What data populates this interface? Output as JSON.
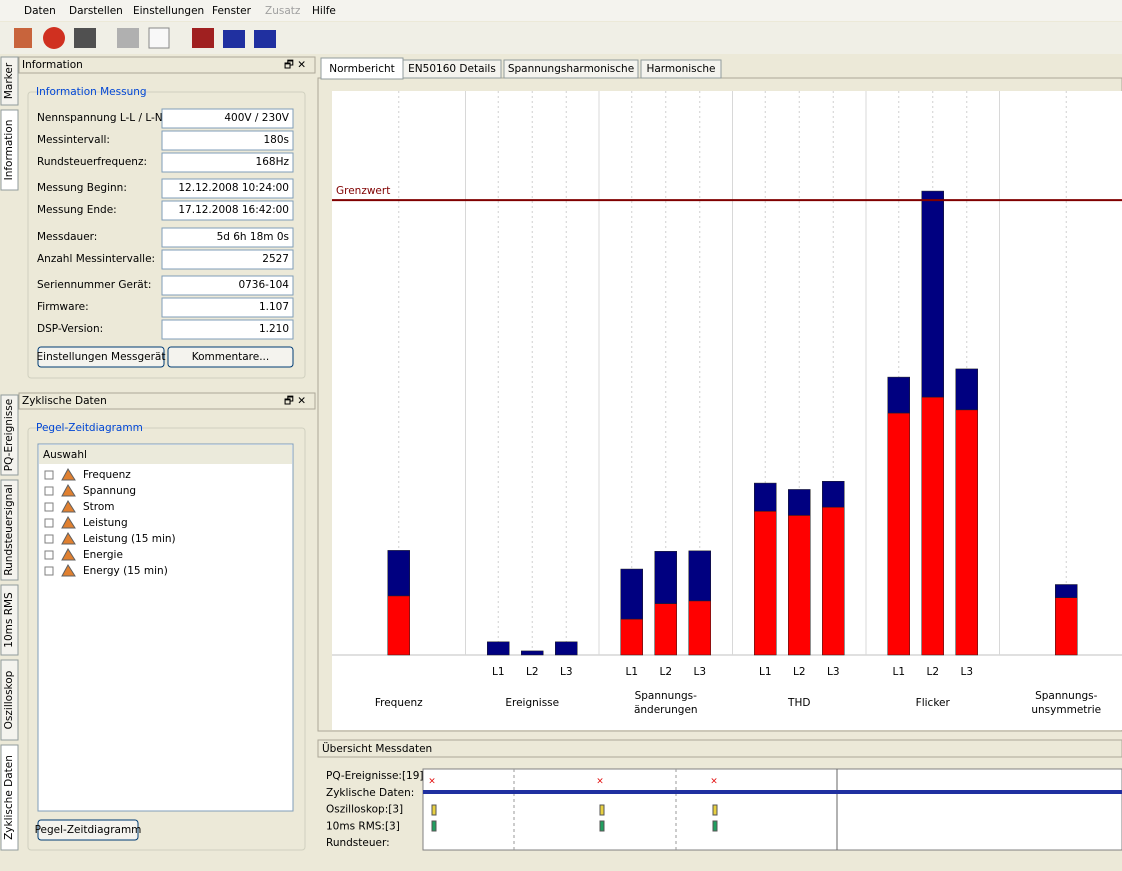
{
  "menu": [
    "Daten",
    "Darstellen",
    "Einstellungen",
    "Fenster",
    "Zusatz",
    "Hilfe"
  ],
  "side_tabs_top": [
    "Marker",
    "Information"
  ],
  "side_tabs_bottom": [
    "PQ-Ereignisse",
    "Rundsteuersignal",
    "10ms RMS",
    "Oszilloskop",
    "Zyklische Daten"
  ],
  "info_panel": {
    "title": "Information",
    "group": "Information Messung",
    "fields": [
      {
        "label": "Nennspannung L-L / L-N:",
        "value": "400V / 230V"
      },
      {
        "label": "Messintervall:",
        "value": "180s"
      },
      {
        "label": "Rundsteuerfrequenz:",
        "value": "168Hz"
      },
      {
        "label": "Messung Beginn:",
        "value": "12.12.2008 10:24:00"
      },
      {
        "label": "Messung Ende:",
        "value": "17.12.2008 16:42:00"
      },
      {
        "label": "Messdauer:",
        "value": "5d 6h 18m 0s"
      },
      {
        "label": "Anzahl Messintervalle:",
        "value": "2527"
      },
      {
        "label": "Seriennummer Gerät:",
        "value": "0736-104"
      },
      {
        "label": "Firmware:",
        "value": "1.107"
      },
      {
        "label": "DSP-Version:",
        "value": "1.210"
      }
    ],
    "buttons": [
      "Einstellungen Messgerät",
      "Kommentare..."
    ]
  },
  "cyclic_panel": {
    "title": "Zyklische Daten",
    "group": "Pegel-Zeitdiagramm",
    "list_header": "Auswahl",
    "items": [
      "Frequenz",
      "Spannung",
      "Strom",
      "Leistung",
      "Leistung (15 min)",
      "Energie",
      "Energy (15 min)"
    ],
    "button": "Pegel-Zeitdiagramm"
  },
  "tabs": [
    "Normbericht",
    "EN50160 Details",
    "Spannungsharmonische",
    "Harmonische"
  ],
  "chart_data": {
    "type": "stacked-bar",
    "groups": [
      {
        "label": [
          "Frequenz"
        ],
        "categories": [
          null
        ]
      },
      {
        "label": [
          "Ereignisse"
        ],
        "categories": [
          "L1",
          "L2",
          "L3"
        ]
      },
      {
        "label": [
          "Spannungs-",
          "änderungen"
        ],
        "categories": [
          "L1",
          "L2",
          "L3"
        ]
      },
      {
        "label": [
          "THD"
        ],
        "categories": [
          "L1",
          "L2",
          "L3"
        ]
      },
      {
        "label": [
          "Flicker"
        ],
        "categories": [
          "L1",
          "L2",
          "L3"
        ]
      },
      {
        "label": [
          "Spannungs-",
          "unsymmetrie"
        ],
        "categories": [
          null
        ]
      }
    ],
    "series": [
      {
        "color": "#ff0000",
        "values": [
          13,
          0,
          0,
          0,
          7.9,
          11.3,
          11.9,
          31.6,
          30.7,
          32.5,
          53.2,
          56.7,
          53.9,
          12.6
        ]
      },
      {
        "color": "#000080",
        "values": [
          10,
          2.9,
          0.9,
          2.9,
          11,
          11.5,
          11,
          6.2,
          5.7,
          5.7,
          7.9,
          45.3,
          9,
          2.9
        ]
      }
    ],
    "ylim": [
      0,
      124
    ],
    "limit_line": {
      "label": "Grenzwert",
      "value": 100,
      "color": "#800000"
    }
  },
  "overview": {
    "title": "Übersicht Messdaten",
    "rows": [
      "PQ-Ereignisse:[19]",
      "Zyklische Daten:",
      "Oszilloskop:[3]",
      "10ms RMS:[3]",
      "Rundsteuer:"
    ]
  }
}
